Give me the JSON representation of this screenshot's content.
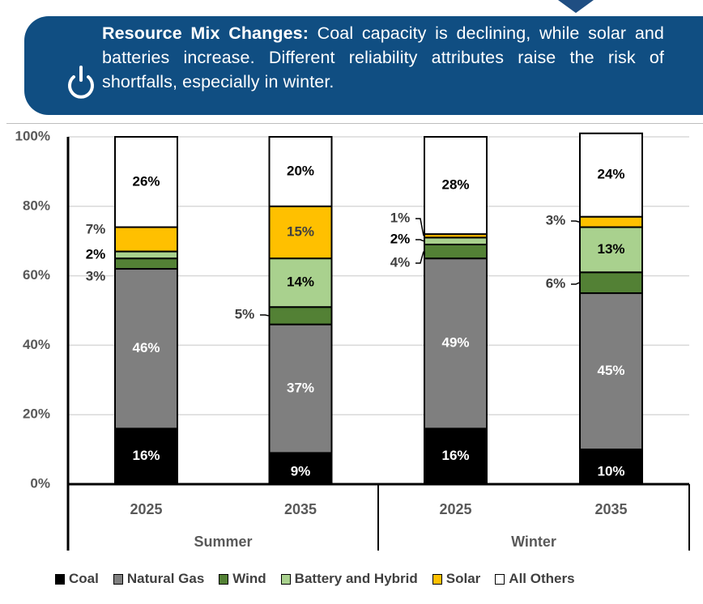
{
  "banner": {
    "icon": "power-icon",
    "title": "Resource Mix Changes:",
    "body": " Coal capacity is declining, while solar and batteries increase. Different reliability attributes raise the risk of shortfalls, especially in winter."
  },
  "colors": {
    "banner_bg": "#104e82",
    "Coal": "#000000",
    "Natural Gas": "#7f7f7f",
    "Wind": "#538135",
    "Battery and Hybrid": "#a9d18e",
    "Solar": "#ffc000",
    "All Others": "#ffffff"
  },
  "chart_data": {
    "type": "bar",
    "stacked": true,
    "percent_stacked": true,
    "title": "",
    "xlabel": "",
    "ylabel": "",
    "ylim": [
      0,
      100
    ],
    "yticks": [
      "0%",
      "20%",
      "40%",
      "60%",
      "80%",
      "100%"
    ],
    "grid": true,
    "legend_position": "bottom",
    "groups": [
      {
        "label": "Summer",
        "categories": [
          "2025",
          "2035"
        ]
      },
      {
        "label": "Winter",
        "categories": [
          "2025",
          "2035"
        ]
      }
    ],
    "categories": [
      "Summer 2025",
      "Summer 2035",
      "Winter 2025",
      "Winter 2035"
    ],
    "category_labels": [
      "2025",
      "2035",
      "2025",
      "2035"
    ],
    "series": [
      {
        "name": "Coal",
        "values": [
          16,
          9,
          16,
          10
        ],
        "labels": [
          "16%",
          "9%",
          "16%",
          "10%"
        ]
      },
      {
        "name": "Natural Gas",
        "values": [
          46,
          37,
          49,
          45
        ],
        "labels": [
          "46%",
          "37%",
          "49%",
          "45%"
        ]
      },
      {
        "name": "Wind",
        "values": [
          3,
          5,
          4,
          6
        ],
        "labels": [
          "3%",
          "5%",
          "4%",
          "6%"
        ]
      },
      {
        "name": "Battery and Hybrid",
        "values": [
          2,
          14,
          2,
          13
        ],
        "labels": [
          "2%",
          "14%",
          "2%",
          "13%"
        ]
      },
      {
        "name": "Solar",
        "values": [
          7,
          15,
          1,
          3
        ],
        "labels": [
          "7%",
          "15%",
          "1%",
          "3%"
        ]
      },
      {
        "name": "All Others",
        "values": [
          26,
          20,
          28,
          24
        ],
        "labels": [
          "26%",
          "20%",
          "28%",
          "24%"
        ]
      }
    ],
    "legend": [
      "Coal",
      "Natural Gas",
      "Wind",
      "Battery and Hybrid",
      "Solar",
      "All Others"
    ]
  }
}
